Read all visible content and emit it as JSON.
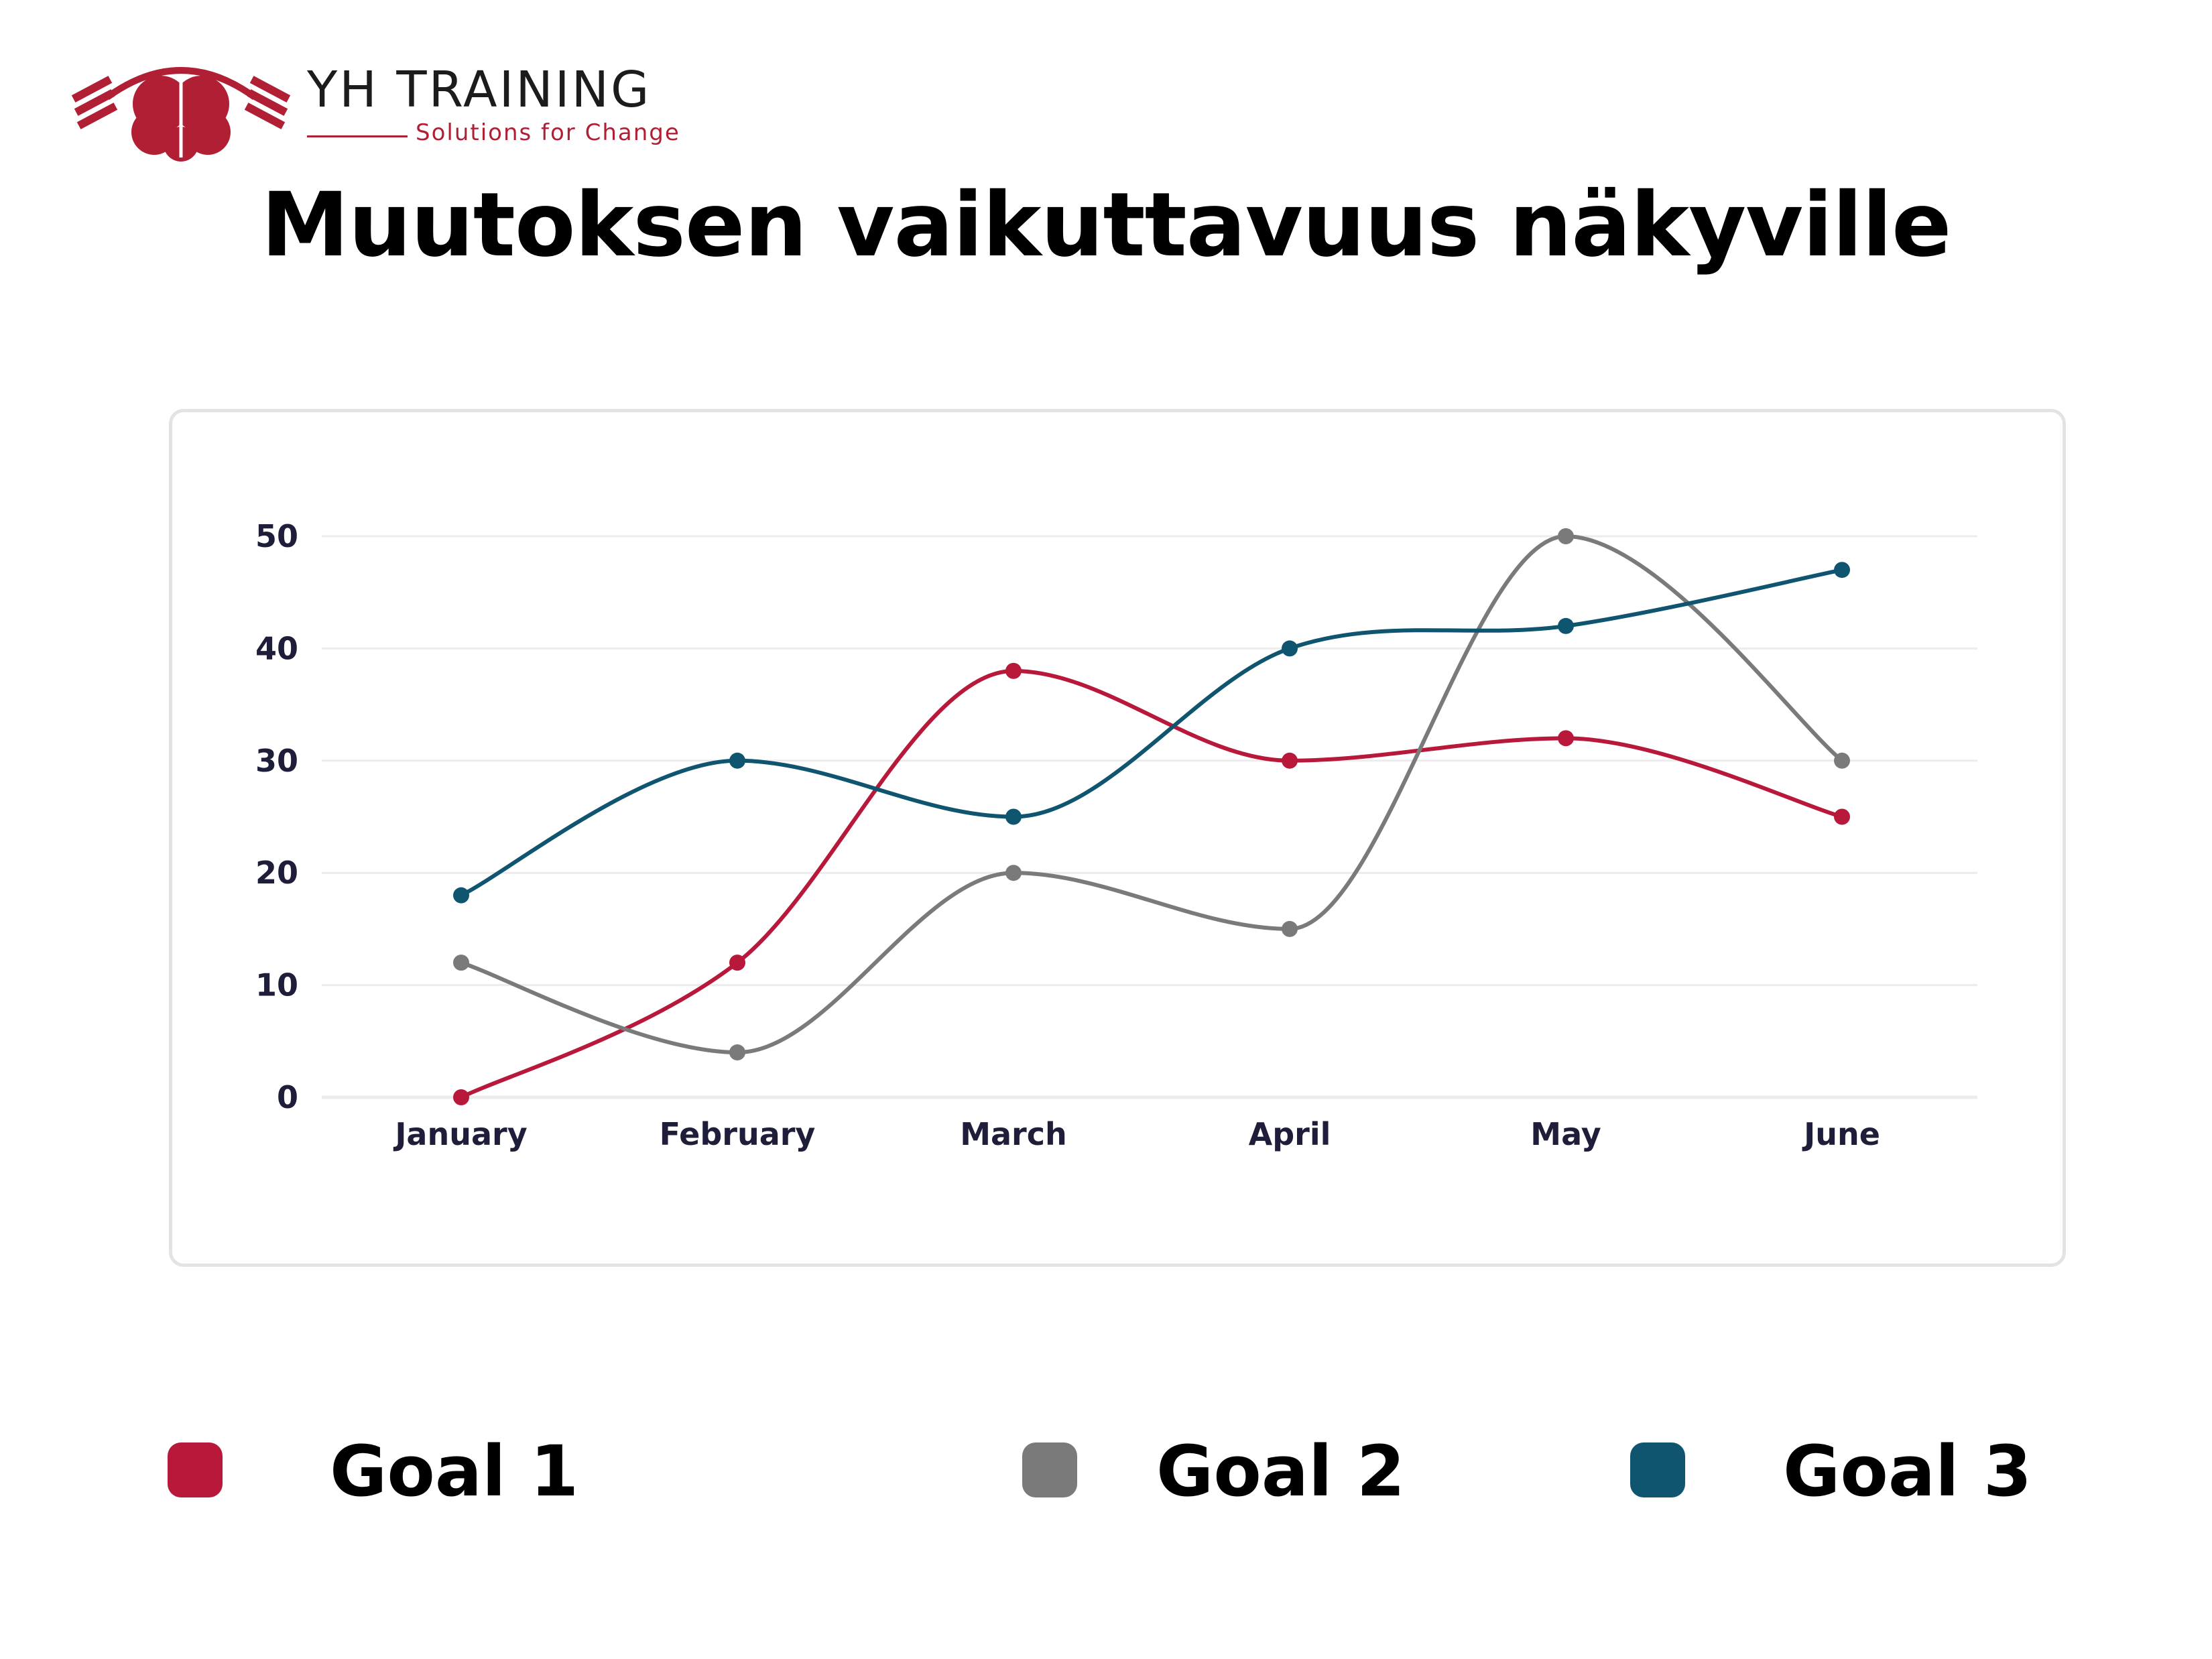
{
  "header": {
    "brand_name": "YH TRAINING",
    "brand_tagline": "Solutions for Change",
    "title": "Muutoksen vaikuttavuus näkyville"
  },
  "colors": {
    "goal1": "#b8193a",
    "goal2": "#7a7a7a",
    "goal3": "#0f5570",
    "brand": "#b01f34",
    "gridline": "#ececec",
    "tick_text": "#1e1e3a"
  },
  "icons": {
    "logo": "brain-barbell-icon"
  },
  "chart_data": {
    "type": "line",
    "smooth": true,
    "categories": [
      "January",
      "February",
      "March",
      "April",
      "May",
      "June"
    ],
    "ylim": [
      0,
      50
    ],
    "yticks": [
      "0",
      "10",
      "20",
      "30",
      "40",
      "50"
    ],
    "grid": true,
    "legend_position": "bottom",
    "series": [
      {
        "name": "Goal 1",
        "color": "#b8193a",
        "values": [
          0,
          12,
          38,
          30,
          32,
          25
        ]
      },
      {
        "name": "Goal 2",
        "color": "#7a7a7a",
        "values": [
          12,
          4,
          20,
          15,
          50,
          30
        ]
      },
      {
        "name": "Goal 3",
        "color": "#0f5570",
        "values": [
          18,
          30,
          25,
          40,
          42,
          47
        ]
      }
    ]
  }
}
